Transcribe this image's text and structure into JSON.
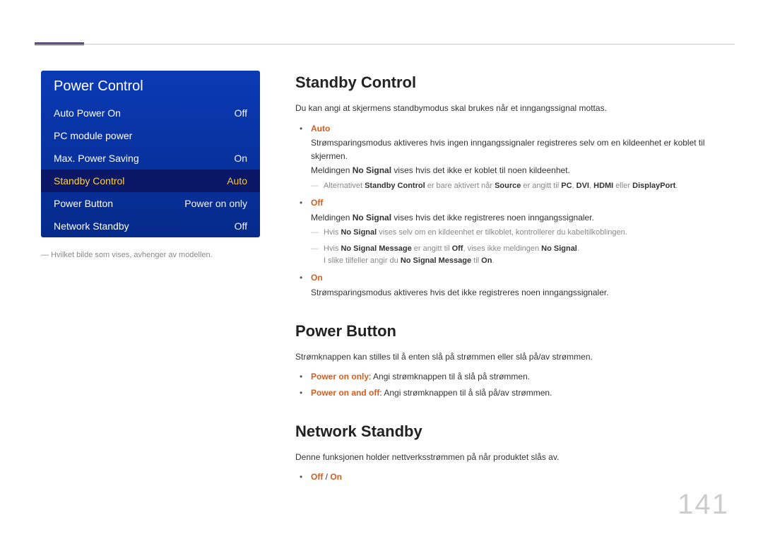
{
  "page_number": "141",
  "menu": {
    "title": "Power Control",
    "items": [
      {
        "label": "Auto Power On",
        "value": "Off",
        "selected": false
      },
      {
        "label": "PC module power",
        "value": "",
        "selected": false
      },
      {
        "label": "Max. Power Saving",
        "value": "On",
        "selected": false
      },
      {
        "label": "Standby Control",
        "value": "Auto",
        "selected": true
      },
      {
        "label": "Power Button",
        "value": "Power on only",
        "selected": false
      },
      {
        "label": "Network Standby",
        "value": "Off",
        "selected": false
      }
    ],
    "note_prefix": "―",
    "note": "Hvilket bilde som vises, avhenger av modellen."
  },
  "sections": {
    "standby": {
      "title": "Standby Control",
      "intro": "Du kan angi at skjermens standbymodus skal brukes når et inngangssignal mottas.",
      "auto": {
        "name": "Auto",
        "line1": "Strømsparingsmodus aktiveres hvis ingen inngangssignaler registreres selv om en kildeenhet er koblet til skjermen.",
        "line2_pre": "Meldingen ",
        "line2_bold": "No Signal",
        "line2_post": " vises hvis det ikke er koblet til noen kildeenhet.",
        "sub1_a": "Alternativet ",
        "sub1_b": "Standby Control",
        "sub1_c": " er bare aktivert når ",
        "sub1_d": "Source",
        "sub1_e": " er angitt til ",
        "sub1_f": "PC",
        "sub1_g": ", ",
        "sub1_h": "DVI",
        "sub1_i": ", ",
        "sub1_j": "HDMI",
        "sub1_k": " eller ",
        "sub1_l": "DisplayPort",
        "sub1_m": "."
      },
      "off": {
        "name": "Off",
        "line1_pre": "Meldingen ",
        "line1_bold": "No Signal",
        "line1_post": " vises hvis det ikke registreres noen inngangssignaler.",
        "sub_ns_a": "Hvis ",
        "sub_ns_b": "No Signal",
        "sub_ns_c": " vises selv om en kildeenhet er tilkoblet, kontrollerer du kabeltilkoblingen.",
        "sub_msg_a": "Hvis ",
        "sub_msg_b": "No Signal Message",
        "sub_msg_c": " er angitt til ",
        "sub_msg_d": "Off",
        "sub_msg_e": ", vises ikke meldingen ",
        "sub_msg_f": "No Signal",
        "sub_msg_g": ".",
        "sub_msg2_a": "I slike tilfeller angir du ",
        "sub_msg2_b": "No Signal Message",
        "sub_msg2_c": " til ",
        "sub_msg2_d": "On",
        "sub_msg2_e": "."
      },
      "on": {
        "name": "On",
        "line1": "Strømsparingsmodus aktiveres hvis det ikke registreres noen inngangssignaler."
      }
    },
    "powerbtn": {
      "title": "Power Button",
      "intro": "Strømknappen kan stilles til å enten slå på strømmen eller slå på/av strømmen.",
      "opt1_name": "Power on only",
      "opt1_desc": ": Angi strømknappen til å slå på strømmen.",
      "opt2_name": "Power on and off",
      "opt2_desc": ": Angi strømknappen til å slå på/av strømmen."
    },
    "network": {
      "title": "Network Standby",
      "intro": "Denne funksjonen holder nettverksstrømmen på når produktet slås av.",
      "opt_off": "Off",
      "opt_sep": " / ",
      "opt_on": "On"
    }
  }
}
